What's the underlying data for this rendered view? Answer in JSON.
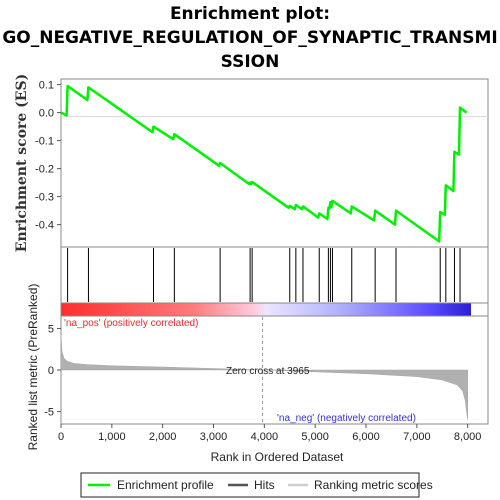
{
  "chart_data": {
    "type": "line",
    "title_lines": [
      "Enrichment plot:",
      "GO_NEGATIVE_REGULATION_OF_SYNAPTIC_TRANSMI",
      "SSION"
    ],
    "es_panel": {
      "ylabel": "Enrichment score (ES)",
      "yticks": [
        "0.1",
        "0.0",
        "-0.1",
        "-0.2",
        "-0.3",
        "-0.4"
      ],
      "ylim": [
        -0.48,
        0.12
      ]
    },
    "xlim": [
      0,
      8400
    ],
    "xticks": [
      "0",
      "1,000",
      "2,000",
      "3,000",
      "4,000",
      "5,000",
      "6,000",
      "7,000",
      "8,000"
    ],
    "xlabel": "Rank in Ordered Dataset",
    "hits": [
      130,
      540,
      1820,
      2230,
      3130,
      3720,
      3760,
      4500,
      4620,
      4760,
      5080,
      5260,
      5300,
      5340,
      5720,
      6180,
      6590,
      7460,
      7570,
      7740,
      7850
    ],
    "enrichment_profile": {
      "x": [
        0,
        110,
        130,
        520,
        540,
        1800,
        1820,
        2210,
        2230,
        3110,
        3130,
        3700,
        3720,
        3740,
        3760,
        4480,
        4500,
        4600,
        4620,
        4740,
        4760,
        5060,
        5080,
        5240,
        5260,
        5280,
        5300,
        5320,
        5340,
        5700,
        5720,
        6160,
        6180,
        6570,
        6590,
        7440,
        7460,
        7550,
        7570,
        7720,
        7740,
        7830,
        7850,
        7980
      ],
      "y": [
        0.0,
        -0.01,
        0.095,
        0.045,
        0.09,
        -0.07,
        -0.05,
        -0.095,
        -0.077,
        -0.19,
        -0.18,
        -0.255,
        -0.25,
        -0.255,
        -0.248,
        -0.34,
        -0.333,
        -0.345,
        -0.33,
        -0.345,
        -0.335,
        -0.375,
        -0.36,
        -0.38,
        -0.34,
        -0.343,
        -0.32,
        -0.338,
        -0.315,
        -0.36,
        -0.335,
        -0.385,
        -0.35,
        -0.4,
        -0.35,
        -0.46,
        -0.355,
        -0.365,
        -0.26,
        -0.28,
        -0.14,
        -0.15,
        0.018,
        0.0
      ]
    },
    "metric_panel": {
      "ylabel": "Ranked list metric (PreRanked)",
      "yticks": [
        "5",
        "0",
        "-5"
      ],
      "ylim": [
        -6.5,
        6.5
      ],
      "zero_cross_label": "Zero cross at 3965",
      "zero_cross": 3965,
      "pos_label": "'na_pos' (positively correlated)",
      "neg_label": "'na_neg' (negatively correlated)"
    },
    "ranked_metric_curve": {
      "x": [
        0,
        20,
        60,
        120,
        250,
        500,
        1000,
        2000,
        3000,
        3965,
        5000,
        6000,
        7000,
        7500,
        7800,
        7900,
        7950,
        7980,
        8000
      ],
      "y": [
        4.2,
        2.2,
        1.4,
        1.05,
        0.8,
        0.65,
        0.5,
        0.35,
        0.18,
        0.0,
        -0.22,
        -0.45,
        -0.8,
        -1.2,
        -1.8,
        -2.5,
        -3.6,
        -5.0,
        -6.0
      ]
    },
    "legend": {
      "placement": "bottom",
      "items": [
        "Enrichment profile",
        "Hits",
        "Ranking metric scores"
      ]
    },
    "colors": {
      "profile": "#00ee00",
      "pos_bar": "#ff3c3c",
      "neg_bar": "#3333ff",
      "hit_line": "#000000",
      "metric_fill": "#b0b0b0"
    }
  }
}
